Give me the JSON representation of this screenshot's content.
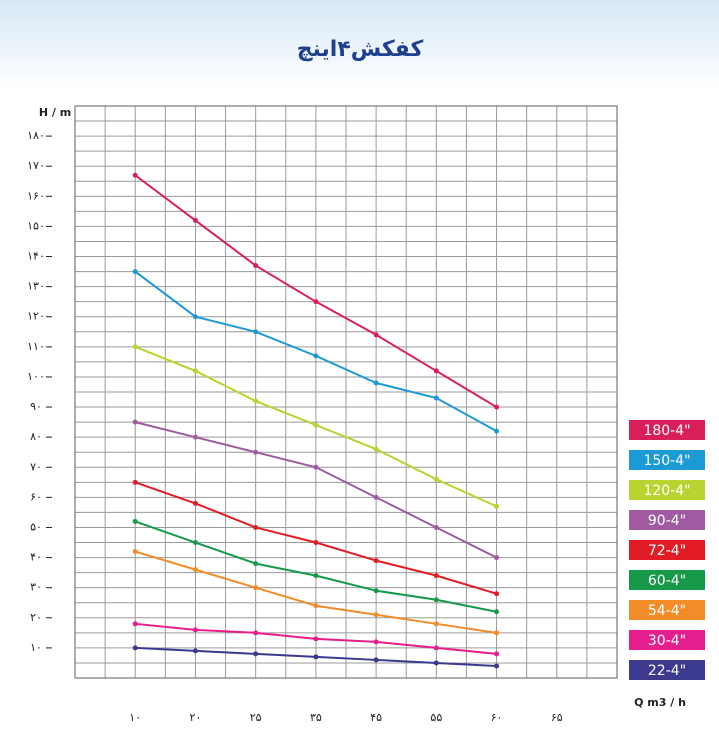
{
  "chart_data": {
    "type": "line",
    "title": "کفکش۴اینچ",
    "y_label": "H / m",
    "x_label": "Q m3 / h",
    "categories": [
      "۱۰",
      "۲۰",
      "۲۵",
      "۳۵",
      "۴۵",
      "۵۵",
      "۶۰",
      "۶۵"
    ],
    "ylim": [
      0,
      190
    ],
    "yticks": [
      {
        "value": 10,
        "label": "۱۰"
      },
      {
        "value": 20,
        "label": "۲۰"
      },
      {
        "value": 30,
        "label": "۳۰"
      },
      {
        "value": 40,
        "label": "۴۰"
      },
      {
        "value": 50,
        "label": "۵۰"
      },
      {
        "value": 60,
        "label": "۶۰"
      },
      {
        "value": 70,
        "label": "۷۰"
      },
      {
        "value": 80,
        "label": "۸۰"
      },
      {
        "value": 90,
        "label": "۹۰"
      },
      {
        "value": 100,
        "label": "۱۰۰"
      },
      {
        "value": 110,
        "label": "۱۱۰"
      },
      {
        "value": 120,
        "label": "۱۲۰"
      },
      {
        "value": 130,
        "label": "۱۳۰"
      },
      {
        "value": 140,
        "label": "۱۴۰"
      },
      {
        "value": 150,
        "label": "۱۵۰"
      },
      {
        "value": 160,
        "label": "۱۶۰"
      },
      {
        "value": 170,
        "label": "۱۷۰"
      },
      {
        "value": 180,
        "label": "۱۸۰"
      }
    ],
    "grid": true,
    "series": [
      {
        "name": "180-4\"",
        "color": "#d81f5a",
        "values": [
          167,
          152,
          137,
          125,
          114,
          102,
          90,
          null
        ]
      },
      {
        "name": "150-4\"",
        "color": "#1b9ad6",
        "values": [
          135,
          120,
          115,
          107,
          98,
          93,
          82,
          null
        ]
      },
      {
        "name": "120-4\"",
        "color": "#b7d430",
        "values": [
          110,
          102,
          92,
          84,
          76,
          66,
          57,
          null
        ]
      },
      {
        "name": "90-4\"",
        "color": "#a05aa2",
        "values": [
          85,
          80,
          75,
          70,
          60,
          50,
          40,
          null
        ]
      },
      {
        "name": "72-4\"",
        "color": "#e11c24",
        "values": [
          65,
          58,
          50,
          45,
          39,
          34,
          28,
          null
        ]
      },
      {
        "name": "60-4\"",
        "color": "#17994a",
        "values": [
          52,
          45,
          38,
          34,
          29,
          26,
          22,
          null
        ]
      },
      {
        "name": "54-4\"",
        "color": "#f28c28",
        "values": [
          42,
          36,
          30,
          24,
          21,
          18,
          15,
          null
        ]
      },
      {
        "name": "30-4\"",
        "color": "#e51e8d",
        "values": [
          18,
          16,
          15,
          13,
          12,
          10,
          8,
          null
        ]
      },
      {
        "name": "22-4\"",
        "color": "#3b3a8f",
        "values": [
          10,
          9,
          8,
          7,
          6,
          5,
          4,
          null
        ]
      }
    ]
  }
}
